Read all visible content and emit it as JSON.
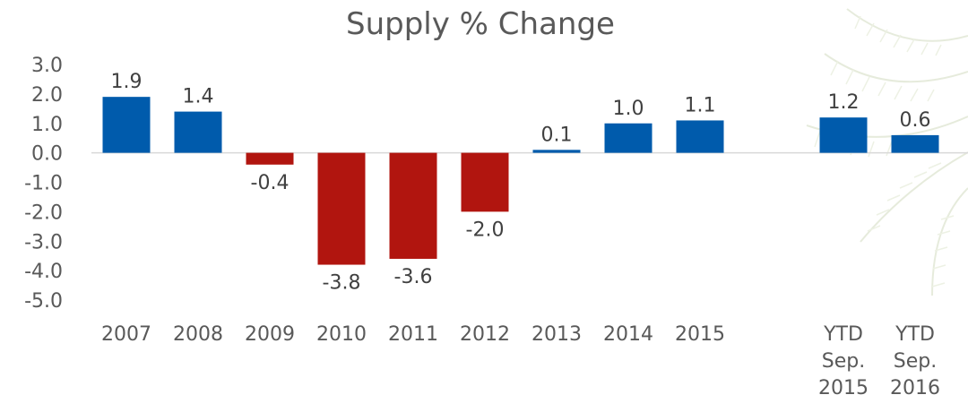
{
  "chart_data": {
    "type": "bar",
    "title": "Supply % Change",
    "xlabel": "",
    "ylabel": "",
    "ylim": [
      -5.0,
      3.0
    ],
    "yticks": [
      "3.0",
      "2.0",
      "1.0",
      "0.0",
      "-1.0",
      "-2.0",
      "-3.0",
      "-4.0",
      "-5.0"
    ],
    "categories": [
      [
        "2007"
      ],
      [
        "2008"
      ],
      [
        "2009"
      ],
      [
        "2010"
      ],
      [
        "2011"
      ],
      [
        "2012"
      ],
      [
        "2013"
      ],
      [
        "2014"
      ],
      [
        "2015"
      ],
      [
        "YTD",
        "Sep.",
        "2015"
      ],
      [
        "YTD",
        "Sep.",
        "2016"
      ]
    ],
    "values": [
      1.9,
      1.4,
      -0.4,
      -3.8,
      -3.6,
      -2.0,
      0.1,
      1.0,
      1.1,
      1.2,
      0.6
    ],
    "data_labels": [
      "1.9",
      "1.4",
      "-0.4",
      "-3.8",
      "-3.6",
      "-2.0",
      "0.1",
      "1.0",
      "1.1",
      "1.2",
      "0.6"
    ],
    "positive_color": "#005BAC",
    "negative_color": "#B1150F",
    "grid": false,
    "legend": "none"
  },
  "decoration": {
    "icon": "palm-frond-icon"
  }
}
